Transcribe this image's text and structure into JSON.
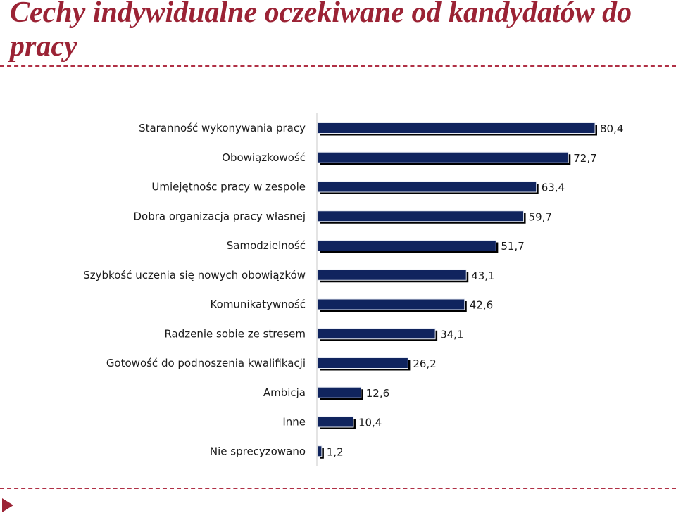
{
  "header": {
    "title": "Cechy indywidualne oczekiwane od kandydatów do pracy"
  },
  "colors": {
    "title": "#9b2335",
    "bar": "#10245e",
    "divider": "#b03045"
  },
  "icons": {
    "nav": "play-triangle-icon"
  },
  "chart_data": {
    "type": "bar",
    "orientation": "horizontal",
    "title": "",
    "xlabel": "",
    "ylabel": "",
    "xlim": [
      0,
      80.4
    ],
    "grid": false,
    "categories": [
      "Staranność wykonywania pracy",
      "Obowiązkowość",
      "Umiejętnośc pracy w zespole",
      "Dobra organizacja pracy własnej",
      "Samodzielność",
      "Szybkość uczenia się nowych obowiązków",
      "Komunikatywność",
      "Radzenie sobie ze stresem",
      "Gotowość do podnoszenia kwalifikacji",
      "Ambicja",
      "Inne",
      "Nie sprecyzowano"
    ],
    "values": [
      80.4,
      72.7,
      63.4,
      59.7,
      51.7,
      43.1,
      42.6,
      34.1,
      26.2,
      12.6,
      10.4,
      1.2
    ],
    "value_labels": [
      "80,4",
      "72,7",
      "63,4",
      "59,7",
      "51,7",
      "43,1",
      "42,6",
      "34,1",
      "26,2",
      "12,6",
      "10,4",
      "1,2"
    ]
  }
}
